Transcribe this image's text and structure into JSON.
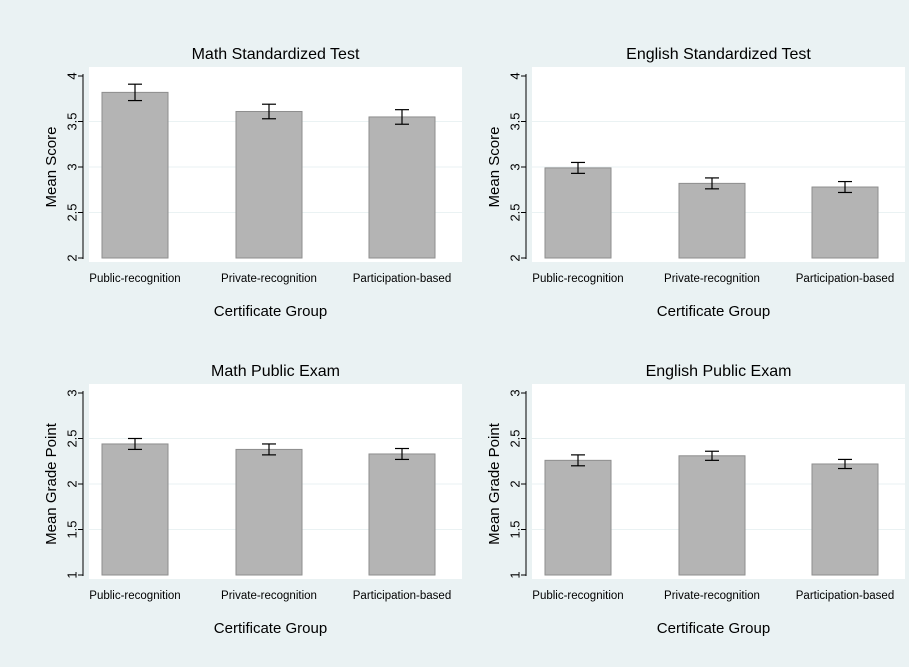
{
  "colors": {
    "outer_background": "#eaf2f3",
    "plot_background": "#ffffff",
    "bar_fill": "#b4b4b4",
    "bar_stroke": "#8e8e8e",
    "gridline": "#eaf2f3",
    "axis": "#000000",
    "text": "#000000"
  },
  "chart_data": [
    {
      "type": "bar",
      "title": "Math Standardized Test",
      "xlabel": "Certificate Group",
      "ylabel": "Mean Score",
      "categories": [
        "Public-recognition",
        "Private-recognition",
        "Participation-based"
      ],
      "values": [
        3.82,
        3.61,
        3.55
      ],
      "ci_low": [
        3.73,
        3.53,
        3.47
      ],
      "ci_high": [
        3.91,
        3.69,
        3.63
      ],
      "ylim": [
        2,
        4
      ],
      "yticks": [
        2,
        2.5,
        3,
        3.5,
        4
      ],
      "ytick_labels": [
        "2",
        "2.5",
        "3",
        "3.5",
        "4"
      ],
      "grid": true
    },
    {
      "type": "bar",
      "title": "English Standardized Test",
      "xlabel": "Certificate Group",
      "ylabel": "Mean Score",
      "categories": [
        "Public-recognition",
        "Private-recognition",
        "Participation-based"
      ],
      "values": [
        2.99,
        2.82,
        2.78
      ],
      "ci_low": [
        2.93,
        2.76,
        2.72
      ],
      "ci_high": [
        3.05,
        2.88,
        2.84
      ],
      "ylim": [
        2,
        4
      ],
      "yticks": [
        2,
        2.5,
        3,
        3.5,
        4
      ],
      "ytick_labels": [
        "2",
        "2.5",
        "3",
        "3.5",
        "4"
      ],
      "grid": true
    },
    {
      "type": "bar",
      "title": "Math Public Exam",
      "xlabel": "Certificate Group",
      "ylabel": "Mean Grade Point",
      "categories": [
        "Public-recognition",
        "Private-recognition",
        "Participation-based"
      ],
      "values": [
        2.44,
        2.38,
        2.33
      ],
      "ci_low": [
        2.38,
        2.32,
        2.27
      ],
      "ci_high": [
        2.5,
        2.44,
        2.39
      ],
      "ylim": [
        1,
        3
      ],
      "yticks": [
        1,
        1.5,
        2,
        2.5,
        3
      ],
      "ytick_labels": [
        "1",
        "1.5",
        "2",
        "2.5",
        "3"
      ],
      "grid": true
    },
    {
      "type": "bar",
      "title": "English Public Exam",
      "xlabel": "Certificate Group",
      "ylabel": "Mean Grade Point",
      "categories": [
        "Public-recognition",
        "Private-recognition",
        "Participation-based"
      ],
      "values": [
        2.26,
        2.31,
        2.22
      ],
      "ci_low": [
        2.2,
        2.26,
        2.17
      ],
      "ci_high": [
        2.32,
        2.36,
        2.27
      ],
      "ylim": [
        1,
        3
      ],
      "yticks": [
        1,
        1.5,
        2,
        2.5,
        3
      ],
      "ytick_labels": [
        "1",
        "1.5",
        "2",
        "2.5",
        "3"
      ],
      "grid": true
    }
  ]
}
